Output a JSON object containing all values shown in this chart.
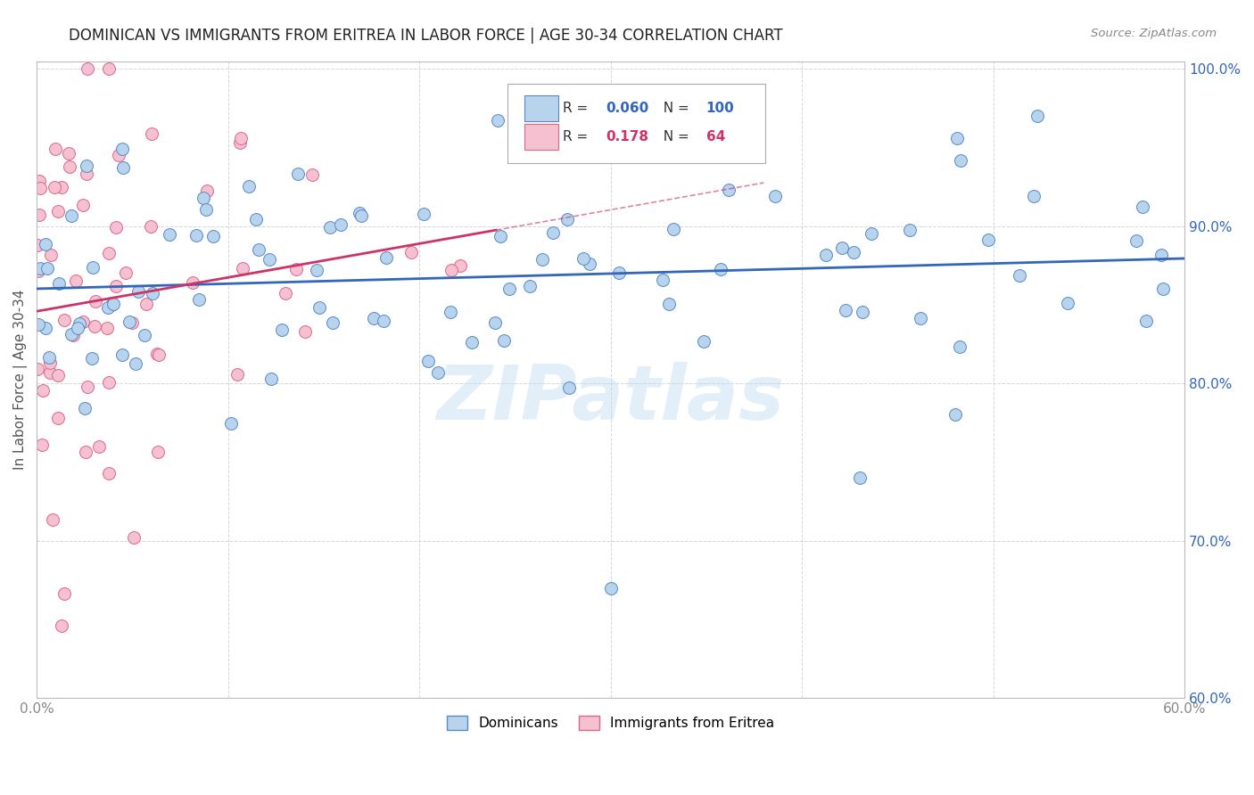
{
  "title": "DOMINICAN VS IMMIGRANTS FROM ERITREA IN LABOR FORCE | AGE 30-34 CORRELATION CHART",
  "source": "Source: ZipAtlas.com",
  "ylabel": "In Labor Force | Age 30-34",
  "xlim": [
    0.0,
    0.6
  ],
  "ylim": [
    0.6,
    1.005
  ],
  "xticks": [
    0.0,
    0.1,
    0.2,
    0.3,
    0.4,
    0.5,
    0.6
  ],
  "yticks": [
    0.6,
    0.7,
    0.8,
    0.9,
    1.0
  ],
  "xtick_labels": [
    "0.0%",
    "",
    "",
    "",
    "",
    "",
    "60.0%"
  ],
  "ytick_labels_right": [
    "60.0%",
    "70.0%",
    "80.0%",
    "90.0%",
    "100.0%"
  ],
  "blue_R": 0.06,
  "blue_N": 100,
  "pink_R": 0.178,
  "pink_N": 64,
  "blue_color": "#b8d4ec",
  "blue_edge_color": "#5588cc",
  "blue_line_color": "#3366bb",
  "pink_color": "#f5c0d0",
  "pink_edge_color": "#dd6688",
  "pink_line_color": "#cc3366",
  "marker_size": 100,
  "background_color": "#ffffff",
  "grid_color": "#cccccc",
  "title_fontsize": 12,
  "axis_fontsize": 11,
  "tick_fontsize": 11,
  "legend_blue_label": "Dominicans",
  "legend_pink_label": "Immigrants from Eritrea",
  "blue_tick_color": "#3366bb",
  "gray_tick_color": "#888888"
}
